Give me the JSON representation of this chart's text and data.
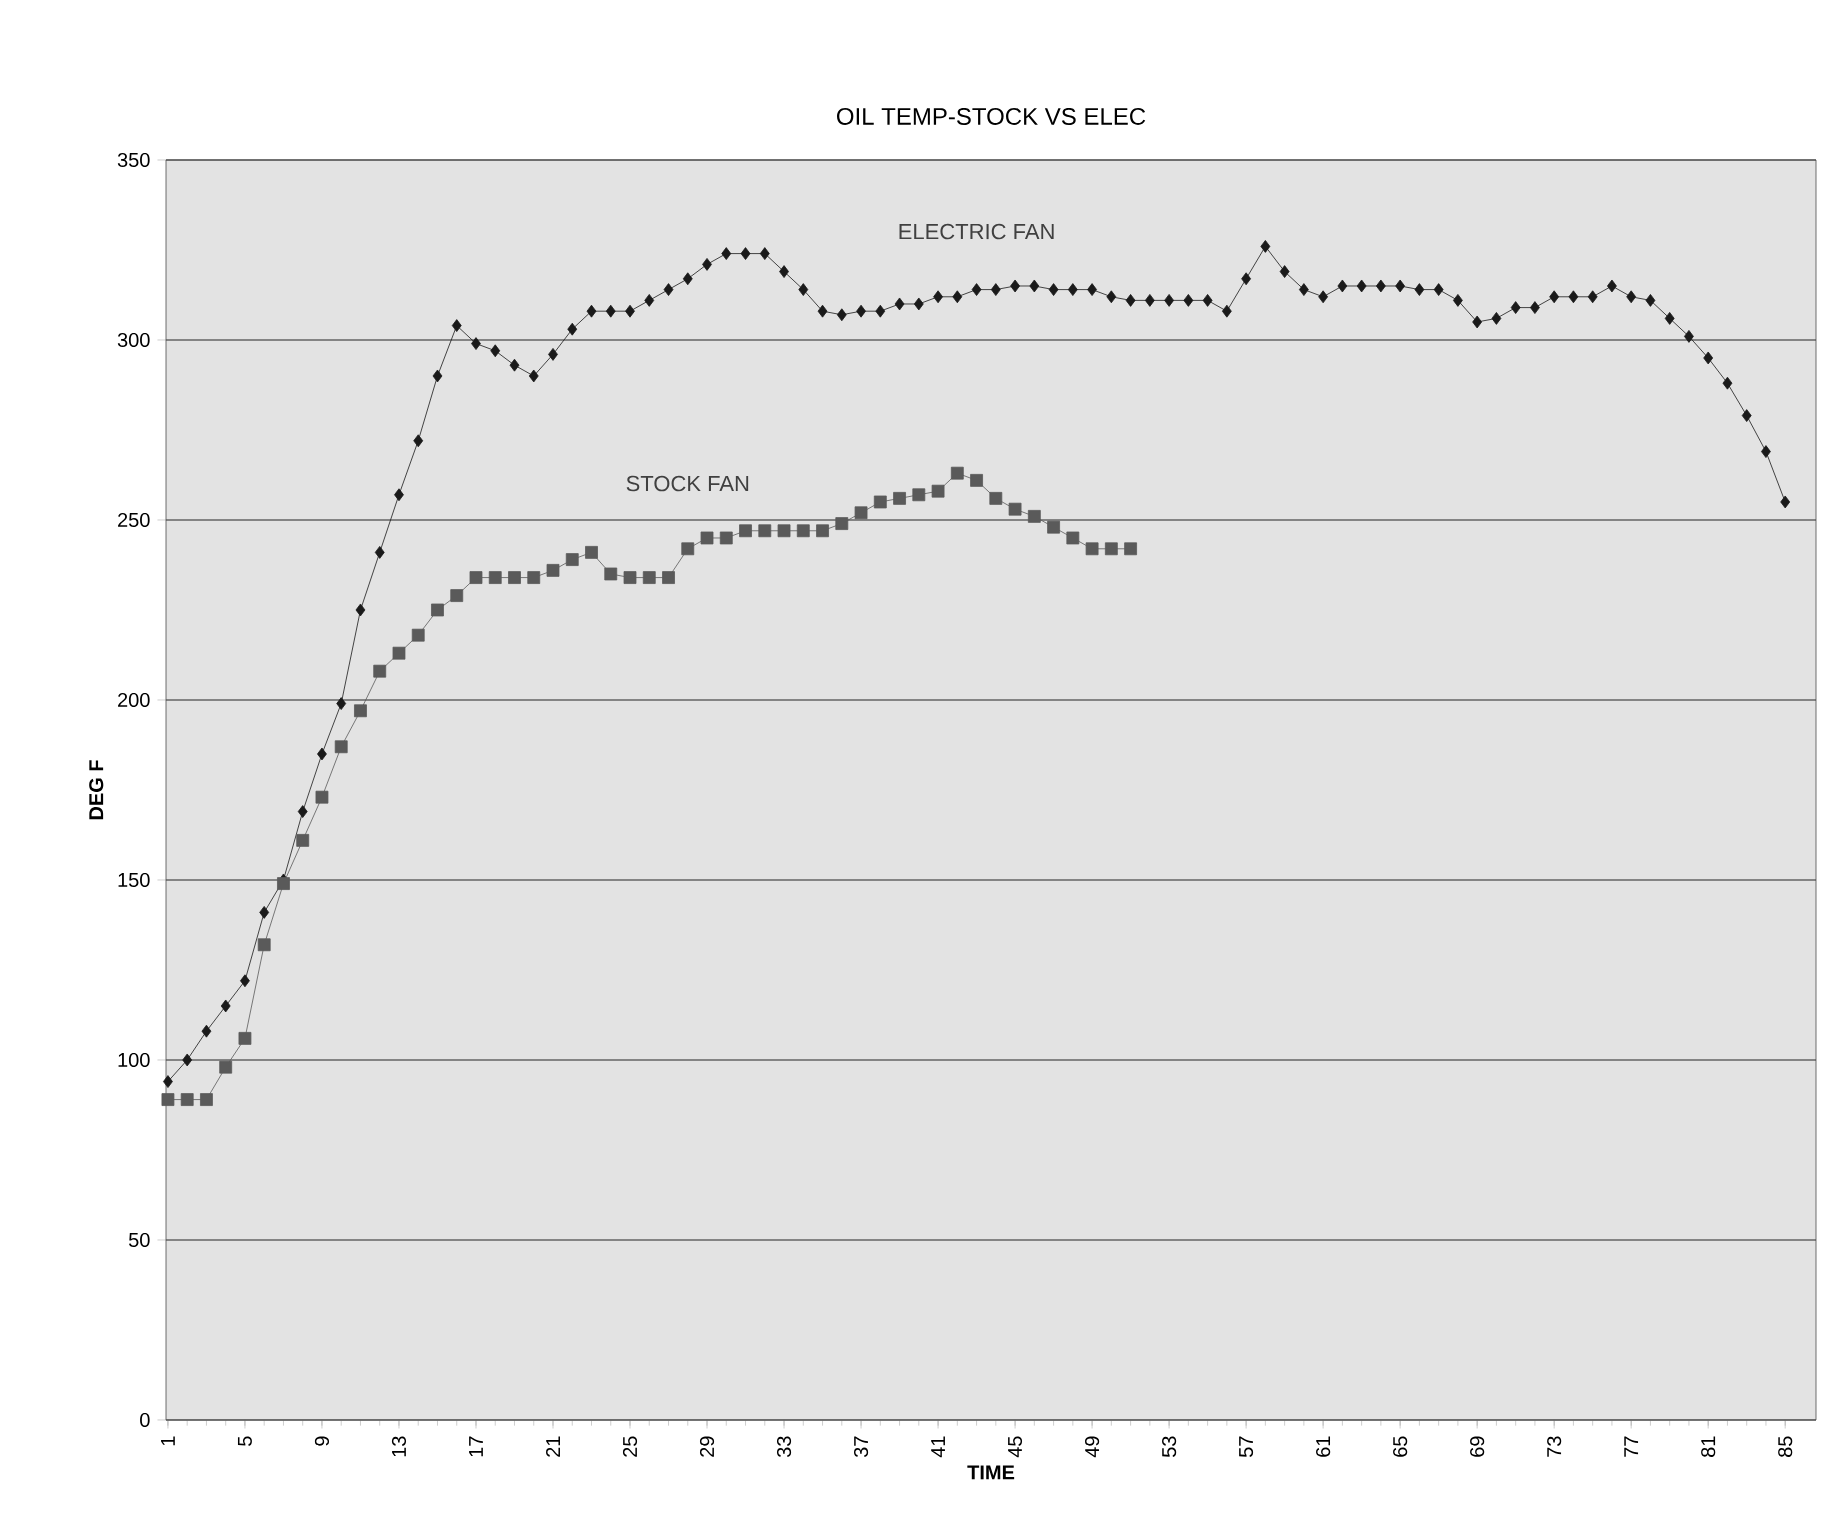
{
  "chart_data": {
    "type": "line",
    "title": "OIL TEMP-STOCK VS ELEC",
    "xlabel": "TIME",
    "ylabel": "DEG F",
    "categories": [
      "1",
      null,
      null,
      null,
      "5",
      null,
      null,
      null,
      "9",
      null,
      null,
      null,
      "13",
      null,
      null,
      null,
      "17",
      null,
      null,
      null,
      "21",
      null,
      null,
      null,
      "25",
      null,
      null,
      null,
      "29",
      null,
      null,
      null,
      "33",
      null,
      null,
      null,
      "37",
      null,
      null,
      null,
      "41",
      null,
      null,
      null,
      "45",
      null,
      null,
      null,
      "49",
      null,
      null,
      null,
      "53",
      null,
      null,
      null,
      "57",
      null,
      null,
      null,
      "61",
      null,
      null,
      null,
      "65",
      null,
      null,
      null,
      "69",
      null,
      null,
      null,
      "73",
      null,
      null,
      null,
      "77",
      null,
      null,
      null,
      "81",
      null,
      null,
      null,
      "85"
    ],
    "series": [
      {
        "name": "ELECTRIC FAN",
        "color": "#1a1a1a",
        "marker": "diamond",
        "values": [
          94,
          100,
          108,
          115,
          122,
          141,
          150,
          169,
          185,
          199,
          225,
          241,
          257,
          272,
          290,
          304,
          299,
          297,
          293,
          290,
          296,
          303,
          308,
          308,
          308,
          311,
          314,
          317,
          321,
          324,
          324,
          324,
          319,
          314,
          308,
          307,
          308,
          308,
          310,
          310,
          312,
          312,
          314,
          314,
          315,
          315,
          314,
          314,
          314,
          312,
          311,
          311,
          311,
          311,
          311,
          308,
          317,
          326,
          319,
          314,
          312,
          315,
          315,
          315,
          315,
          314,
          314,
          311,
          305,
          306,
          309,
          309,
          312,
          312,
          312,
          315,
          312,
          311,
          306,
          301,
          295,
          288,
          279,
          269,
          255
        ]
      },
      {
        "name": "STOCK FAN",
        "color": "#5a5a5a",
        "marker": "square",
        "values": [
          89,
          89,
          89,
          98,
          106,
          132,
          149,
          161,
          173,
          187,
          197,
          208,
          213,
          218,
          225,
          229,
          234,
          234,
          234,
          234,
          236,
          239,
          241,
          235,
          234,
          234,
          234,
          242,
          245,
          245,
          247,
          247,
          247,
          247,
          247,
          249,
          252,
          255,
          256,
          257,
          258,
          263,
          261,
          256,
          253,
          251,
          248,
          245,
          242,
          242,
          242,
          null,
          null,
          null,
          null,
          null,
          null,
          null,
          null,
          null,
          null,
          null,
          null,
          null,
          null,
          null,
          null,
          null,
          null,
          null,
          null,
          null,
          null,
          null,
          null,
          null,
          null,
          null,
          null,
          null,
          null,
          null,
          null,
          null,
          null
        ]
      }
    ],
    "ylim": [
      0,
      350
    ],
    "yticks": [
      0,
      50,
      100,
      150,
      200,
      250,
      300,
      350
    ],
    "grid": "y",
    "line_style": "solid"
  }
}
